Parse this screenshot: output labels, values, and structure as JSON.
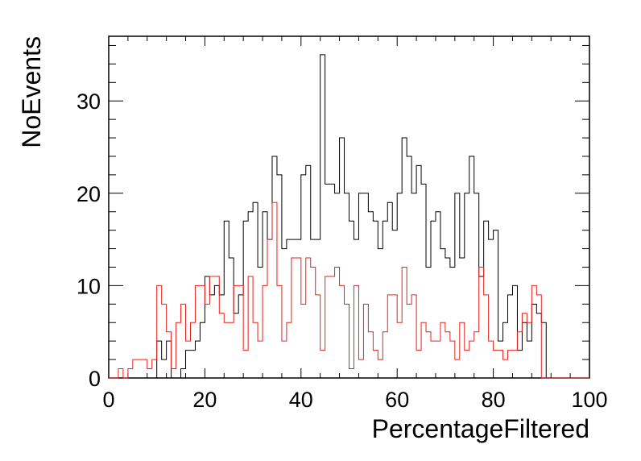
{
  "chart_data": {
    "type": "histogram",
    "title": "",
    "xlabel": "PercentageFiltered",
    "ylabel": "NoEvents",
    "xlim": [
      0,
      100
    ],
    "ylim": [
      0,
      37
    ],
    "bin_width": 1,
    "x_ticks": [
      "0",
      "20",
      "40",
      "60",
      "80",
      "100"
    ],
    "y_ticks": [
      "0",
      "10",
      "20",
      "30"
    ],
    "grid": false,
    "legend": "none",
    "series": [
      {
        "color": "#000000",
        "bin_start": 0,
        "counts": [
          0,
          0,
          0,
          0,
          0,
          0,
          0,
          0,
          0,
          0,
          4,
          2,
          4,
          0,
          0,
          1,
          3,
          3,
          4,
          6,
          11,
          9,
          10,
          9,
          17,
          13,
          7,
          9,
          17,
          18,
          19,
          12,
          18,
          15,
          24,
          22,
          14,
          15,
          15,
          15,
          22,
          23,
          15,
          15,
          35,
          21,
          21,
          20,
          26,
          20,
          17,
          15,
          20,
          20,
          18,
          17,
          14,
          17,
          19,
          16,
          20,
          26,
          24,
          20,
          23,
          21,
          12,
          17,
          18,
          14,
          13,
          12,
          20,
          13,
          20,
          24,
          20,
          11,
          17,
          15,
          16,
          4,
          6,
          9,
          10,
          3,
          6,
          4,
          8,
          7,
          6,
          0,
          0,
          0,
          0,
          0,
          0,
          0,
          0,
          0
        ]
      },
      {
        "color": "#e8211a",
        "bin_start": 0,
        "counts": [
          0,
          0,
          1,
          0,
          1,
          2,
          2,
          2,
          1,
          2,
          10,
          8,
          5,
          1,
          6,
          8,
          4,
          6,
          10,
          10,
          8,
          11,
          11,
          7,
          6,
          6,
          10,
          10,
          3,
          11,
          6,
          4,
          10,
          15,
          19,
          10,
          4,
          6,
          13,
          13,
          8,
          13,
          12,
          9,
          3,
          11,
          11,
          12,
          10,
          8,
          1,
          10,
          2,
          8,
          5,
          3,
          2,
          5,
          9,
          9,
          6,
          12,
          8,
          9,
          3,
          6,
          5,
          4,
          4,
          6,
          5,
          4,
          2,
          6,
          3,
          4,
          5,
          12,
          9,
          4,
          3,
          3,
          2,
          3,
          3,
          5,
          7,
          6,
          10,
          9,
          0,
          0,
          0,
          0,
          0,
          0,
          0,
          0,
          0,
          0
        ]
      }
    ]
  }
}
